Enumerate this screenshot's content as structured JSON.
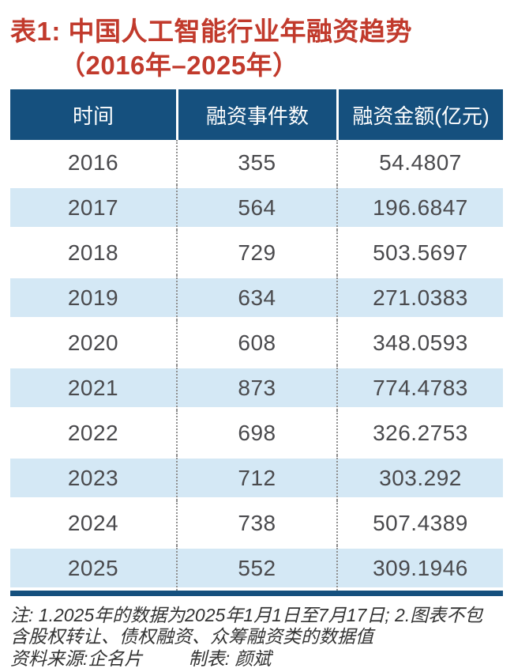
{
  "title": {
    "line1": "表1: 中国人工智能行业年融资趋势",
    "line2": "（2016年–2025年）"
  },
  "chart_data": {
    "type": "table",
    "title": "表1: 中国人工智能行业年融资趋势（2016年–2025年）",
    "columns": [
      "时间",
      "融资事件数",
      "融资金额(亿元)"
    ],
    "rows": [
      [
        "2016",
        "355",
        "54.4807"
      ],
      [
        "2017",
        "564",
        "196.6847"
      ],
      [
        "2018",
        "729",
        "503.5697"
      ],
      [
        "2019",
        "634",
        "271.0383"
      ],
      [
        "2020",
        "608",
        "348.0593"
      ],
      [
        "2021",
        "873",
        "774.4783"
      ],
      [
        "2022",
        "698",
        "326.2753"
      ],
      [
        "2023",
        "712",
        "303.292"
      ],
      [
        "2024",
        "738",
        "507.4389"
      ],
      [
        "2025",
        "552",
        "309.1946"
      ]
    ],
    "layout": {
      "striped_rows": "even years 2017/2019/2021/2023/2025",
      "header_position": "top"
    }
  },
  "notes": {
    "line1": "注: 1.2025年的数据为2025年1月1日至7月17日; 2.图表不包",
    "line2": "含股权转让、债权融资、众筹融资类的数据值",
    "source": "资料来源:企名片",
    "maker": "制表: 颜斌"
  },
  "colors": {
    "header_bg": "#15507e",
    "stripe_bg": "#d4e8f5",
    "title_red": "#c13a2c",
    "body_text": "#4a4a4d",
    "note_text": "#333333"
  }
}
